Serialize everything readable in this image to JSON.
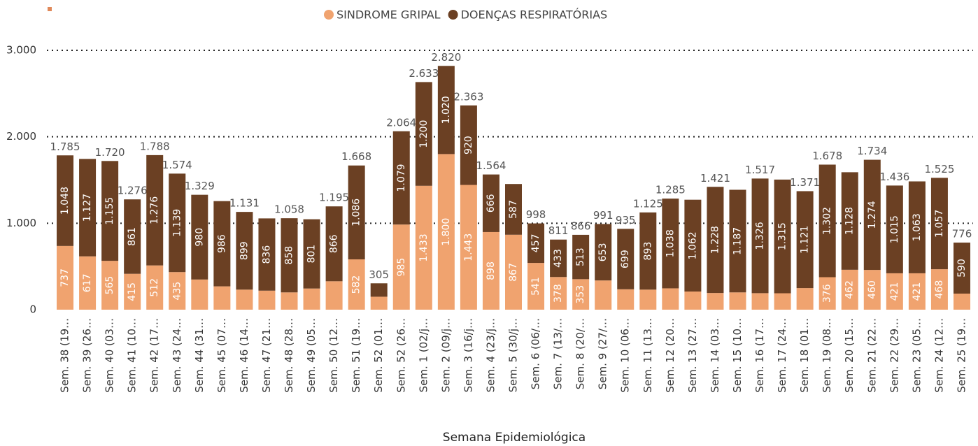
{
  "chart_data": {
    "type": "stacked-bar",
    "x_label": "Semana Epidemiológica",
    "categories": [
      "Sem. 38 (19…",
      "Sem. 39 (26…",
      "Sem. 40 (03…",
      "Sem. 41 (10…",
      "Sem. 42 (17…",
      "Sem. 43 (24…",
      "Sem. 44 (31…",
      "Sem. 45 (07…",
      "Sem. 46 (14…",
      "Sem. 47 (21…",
      "Sem. 48 (28…",
      "Sem. 49 (05…",
      "Sem. 50 (12…",
      "Sem. 51 (19…",
      "Sem. 52 (01…",
      "Sem. 52 (26…",
      "Sem. 1 (02/j…",
      "Sem. 2 (09/j…",
      "Sem. 3 (16/j…",
      "Sem. 4 (23/j…",
      "Sem. 5 (30/j…",
      "Sem. 6 (06/…",
      "Sem. 7 (13/…",
      "Sem. 8 (20/…",
      "Sem. 9 (27/…",
      "Sem. 10 (06…",
      "Sem. 11 (13…",
      "Sem. 12 (20…",
      "Sem. 13 (27…",
      "Sem. 14 (03…",
      "Sem. 15 (10…",
      "Sem. 16 (17…",
      "Sem. 17 (24…",
      "Sem. 18 (01…",
      "Sem. 19 (08…",
      "Sem. 20 (15…",
      "Sem. 21 (22…",
      "Sem. 22 (29…",
      "Sem. 23 (05…",
      "Sem. 24 (12…",
      "Sem. 25 (19…"
    ],
    "series": [
      {
        "name": "SINDROME GRIPAL",
        "color": "#f0a36f",
        "values": [
          737,
          617,
          565,
          415,
          512,
          435,
          349,
          270,
          232,
          220,
          200,
          245,
          329,
          582,
          150,
          985,
          1433,
          1800,
          1443,
          898,
          867,
          541,
          378,
          353,
          338,
          236,
          232,
          247,
          210,
          193,
          200,
          191,
          190,
          250,
          376,
          462,
          460,
          421,
          421,
          468,
          186
        ],
        "value_labels": [
          "737",
          "617",
          "565",
          "415",
          "512",
          "435",
          null,
          null,
          null,
          null,
          null,
          null,
          null,
          "582",
          null,
          "985",
          "1.433",
          "1.800",
          "1.443",
          "898",
          "867",
          "541",
          "378",
          "353",
          null,
          null,
          null,
          null,
          null,
          null,
          null,
          null,
          null,
          null,
          "376",
          "462",
          "460",
          "421",
          "421",
          "468",
          null
        ]
      },
      {
        "name": "DOENÇAS RESPIRATÓRIAS",
        "color": "#6b4023",
        "values": [
          1048,
          1127,
          1155,
          861,
          1276,
          1139,
          980,
          986,
          899,
          836,
          858,
          801,
          866,
          1086,
          155,
          1079,
          1200,
          1020,
          920,
          666,
          587,
          457,
          433,
          513,
          653,
          699,
          893,
          1038,
          1062,
          1228,
          1187,
          1326,
          1315,
          1121,
          1302,
          1128,
          1274,
          1015,
          1063,
          1057,
          590
        ],
        "value_labels": [
          "1.048",
          "1.127",
          "1.155",
          "861",
          "1.276",
          "1.139",
          "980",
          "986",
          "899",
          "836",
          "858",
          "801",
          "866",
          "1.086",
          null,
          "1.079",
          "1.200",
          "1.020",
          "920",
          "666",
          "587",
          "457",
          "433",
          "513",
          "653",
          "699",
          "893",
          "1.038",
          "1.062",
          "1.228",
          "1.187",
          "1.326",
          "1.315",
          "1.121",
          "1.302",
          "1.128",
          "1.274",
          "1.015",
          "1.063",
          "1.057",
          "590"
        ]
      }
    ],
    "totals": [
      {
        "value": 1785,
        "label": "1.785"
      },
      null,
      {
        "value": 1720,
        "label": "1.720"
      },
      {
        "value": 1276,
        "label": "1.276"
      },
      {
        "value": 1788,
        "label": "1.788"
      },
      {
        "value": 1574,
        "label": "1.574"
      },
      {
        "value": 1329,
        "label": "1.329"
      },
      null,
      {
        "value": 1131,
        "label": "1.131"
      },
      null,
      {
        "value": 1058,
        "label": "1.058"
      },
      null,
      {
        "value": 1195,
        "label": "1.195"
      },
      {
        "value": 1668,
        "label": "1.668"
      },
      305,
      {
        "value": 2064,
        "label": "2.064"
      },
      {
        "value": 2633,
        "label": "2.633"
      },
      {
        "value": 2820,
        "label": "2.820"
      },
      {
        "value": 2363,
        "label": "2.363"
      },
      {
        "value": 1564,
        "label": "1.564"
      },
      null,
      998,
      811,
      866,
      991,
      935,
      {
        "value": 1125,
        "label": "1.125"
      },
      {
        "value": 1285,
        "label": "1.285"
      },
      null,
      {
        "value": 1421,
        "label": "1.421"
      },
      null,
      {
        "value": 1517,
        "label": "1.517"
      },
      null,
      {
        "value": 1371,
        "label": "1.371"
      },
      {
        "value": 1678,
        "label": "1.678"
      },
      null,
      {
        "value": 1734,
        "label": "1.734"
      },
      {
        "value": 1436,
        "label": "1.436"
      },
      null,
      {
        "value": 1525,
        "label": "1.525"
      },
      776
    ],
    "ylim": [
      0,
      3000
    ],
    "yticks": [
      0,
      {
        "value": 1000,
        "label": "1.000"
      },
      {
        "value": 2000,
        "label": "2.000"
      },
      {
        "value": 3000,
        "label": "3.000"
      }
    ],
    "grid": true
  }
}
